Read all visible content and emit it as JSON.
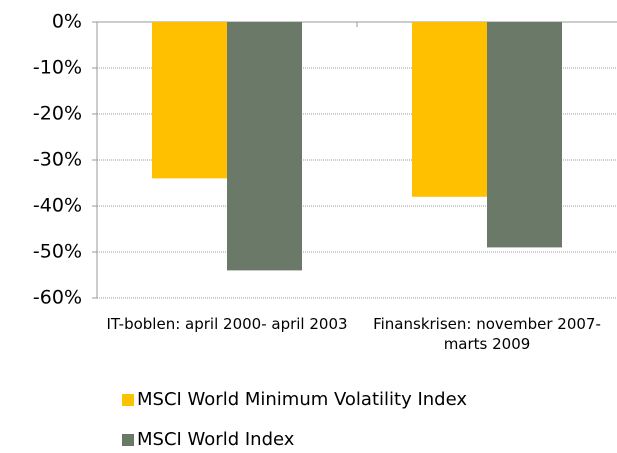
{
  "chart_data": {
    "type": "bar",
    "categories": [
      "IT-boblen: april 2000- april 2003",
      "Finanskrisen: november 2007- marts 2009"
    ],
    "series": [
      {
        "name": "MSCI World Minimum Volatility Index",
        "color": "#ffc000",
        "values": [
          -34,
          -38
        ]
      },
      {
        "name": "MSCI World Index",
        "color": "#6b7a68",
        "values": [
          -54,
          -49
        ]
      }
    ],
    "ylim": [
      -60,
      0
    ],
    "yticks": [
      {
        "value": 0,
        "label": "0%"
      },
      {
        "value": -10,
        "label": "-10%"
      },
      {
        "value": -20,
        "label": "-20%"
      },
      {
        "value": -30,
        "label": "-30%"
      },
      {
        "value": -40,
        "label": "-40%"
      },
      {
        "value": -50,
        "label": "-50%"
      },
      {
        "value": -60,
        "label": "-60%"
      }
    ],
    "grid": true,
    "legend": "bottom"
  }
}
